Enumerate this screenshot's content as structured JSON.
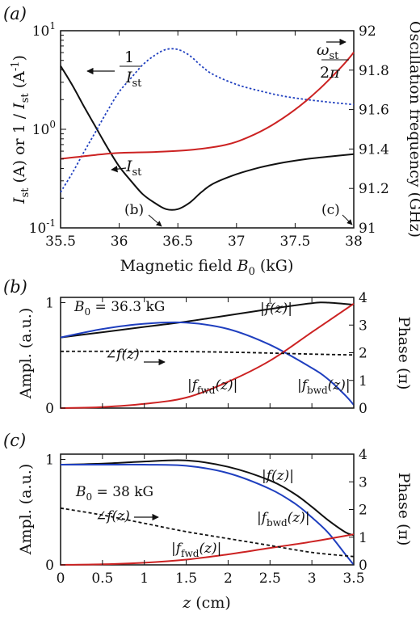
{
  "figure": {
    "panel_a_tag": "(a)",
    "panel_b_tag": "(b)",
    "panel_c_tag": "(c)"
  },
  "colors": {
    "black": "#111111",
    "blue": "#1f3fbf",
    "red": "#cc2222"
  },
  "chart_data": [
    {
      "type": "line",
      "panel": "a",
      "xlabel": "Magnetic field B0 (kG)",
      "ylabel_left": "Ist (A) or 1 / Ist (A-1)",
      "ylabel_right": "Oscillation frequency (GHz)",
      "xlim": [
        35.5,
        38
      ],
      "x_ticks": [
        "35.5",
        "36",
        "36.5",
        "37",
        "37.5",
        "38"
      ],
      "y_left_scale": "log",
      "ylim_left": [
        0.1,
        10
      ],
      "y_left_ticks": [
        "10^-1",
        "10^0",
        "10^1"
      ],
      "ylim_right": [
        91,
        92
      ],
      "y_right_ticks": [
        "91",
        "91.2",
        "91.4",
        "91.6",
        "91.8",
        "92"
      ],
      "annotations": [
        "(b)",
        "(c)"
      ],
      "series": [
        {
          "name": "Ist",
          "axis": "left",
          "style": "solid",
          "color": "black",
          "x": [
            35.5,
            35.6,
            35.7,
            35.8,
            35.9,
            36.0,
            36.1,
            36.2,
            36.3,
            36.4,
            36.5,
            36.6,
            36.7,
            36.8,
            37.0,
            37.2,
            37.4,
            37.6,
            37.8,
            38.0
          ],
          "y": [
            4.4,
            2.8,
            1.7,
            1.05,
            0.65,
            0.42,
            0.3,
            0.22,
            0.18,
            0.155,
            0.155,
            0.18,
            0.23,
            0.28,
            0.35,
            0.41,
            0.46,
            0.5,
            0.53,
            0.56
          ]
        },
        {
          "name": "1/Ist",
          "axis": "left",
          "style": "dotted",
          "color": "blue",
          "x": [
            35.5,
            35.6,
            35.7,
            35.8,
            35.9,
            36.0,
            36.1,
            36.2,
            36.3,
            36.4,
            36.5,
            36.6,
            36.7,
            36.8,
            37.0,
            37.2,
            37.4,
            37.6,
            37.8,
            38.0
          ],
          "y": [
            0.23,
            0.36,
            0.59,
            0.95,
            1.54,
            2.4,
            3.3,
            4.5,
            5.6,
            6.45,
            6.45,
            5.6,
            4.4,
            3.6,
            2.85,
            2.45,
            2.17,
            2.0,
            1.88,
            1.78
          ]
        },
        {
          "name": "ωst/2π",
          "axis": "right",
          "style": "solid",
          "color": "red",
          "x": [
            35.5,
            35.8,
            36.0,
            36.3,
            36.6,
            36.9,
            37.1,
            37.3,
            37.5,
            37.7,
            37.9,
            38.0
          ],
          "y": [
            91.35,
            91.37,
            91.38,
            91.385,
            91.395,
            91.42,
            91.46,
            91.52,
            91.6,
            91.7,
            91.82,
            91.89
          ]
        }
      ]
    },
    {
      "type": "line",
      "panel": "b",
      "annotation_field": "B0 = 36.3 kG",
      "ylabel_left": "Ampl. (a.u.)",
      "ylabel_right": "Phase (π)",
      "xlim": [
        0,
        3.5
      ],
      "ylim_left": [
        0,
        1.05
      ],
      "y_left_ticks": [
        "0",
        "1"
      ],
      "ylim_right": [
        0,
        4
      ],
      "y_right_ticks": [
        "0",
        "1",
        "2",
        "3",
        "4"
      ],
      "series": [
        {
          "name": "|f(z)|",
          "axis": "left",
          "style": "solid",
          "color": "black",
          "x": [
            0,
            0.5,
            1.0,
            1.5,
            2.0,
            2.5,
            3.0,
            3.2,
            3.5
          ],
          "y": [
            0.67,
            0.72,
            0.77,
            0.82,
            0.88,
            0.94,
            0.995,
            1.0,
            0.98
          ]
        },
        {
          "name": "|fbwd(z)|",
          "axis": "left",
          "style": "solid",
          "color": "blue",
          "x": [
            0,
            0.5,
            1.0,
            1.5,
            2.0,
            2.5,
            3.0,
            3.2,
            3.4,
            3.5
          ],
          "y": [
            0.67,
            0.75,
            0.8,
            0.81,
            0.75,
            0.6,
            0.38,
            0.27,
            0.12,
            0.03
          ]
        },
        {
          "name": "|ffwd(z)|",
          "axis": "left",
          "style": "solid",
          "color": "red",
          "x": [
            0,
            0.5,
            1.0,
            1.5,
            2.0,
            2.5,
            3.0,
            3.5
          ],
          "y": [
            0.0,
            0.01,
            0.04,
            0.1,
            0.25,
            0.45,
            0.72,
            0.99
          ]
        },
        {
          "name": "∠f(z)",
          "axis": "right",
          "style": "dotted",
          "color": "black",
          "x": [
            0,
            1.0,
            2.0,
            3.0,
            3.5
          ],
          "y": [
            2.05,
            2.05,
            2.02,
            1.95,
            1.92
          ]
        }
      ]
    },
    {
      "type": "line",
      "panel": "c",
      "annotation_field": "B0 = 38 kG",
      "xlabel": "z (cm)",
      "ylabel_left": "Ampl. (a.u.)",
      "ylabel_right": "Phase (π)",
      "xlim": [
        0,
        3.5
      ],
      "x_ticks": [
        "0",
        "0.5",
        "1",
        "1.5",
        "2",
        "2.5",
        "3",
        "3.5"
      ],
      "ylim_left": [
        0,
        1.05
      ],
      "y_left_ticks": [
        "0",
        "1"
      ],
      "ylim_right": [
        0,
        4
      ],
      "y_right_ticks": [
        "0",
        "1",
        "2",
        "3",
        "4"
      ],
      "series": [
        {
          "name": "|f(z)|",
          "axis": "left",
          "style": "solid",
          "color": "black",
          "x": [
            0,
            0.5,
            1.0,
            1.5,
            2.0,
            2.5,
            2.8,
            3.0,
            3.2,
            3.4,
            3.5
          ],
          "y": [
            0.95,
            0.96,
            0.98,
            0.99,
            0.93,
            0.8,
            0.67,
            0.55,
            0.42,
            0.31,
            0.28
          ]
        },
        {
          "name": "|fbwd(z)|",
          "axis": "left",
          "style": "solid",
          "color": "blue",
          "x": [
            0,
            0.5,
            1.0,
            1.5,
            2.0,
            2.5,
            2.8,
            3.0,
            3.2,
            3.4,
            3.5
          ],
          "y": [
            0.95,
            0.95,
            0.95,
            0.94,
            0.87,
            0.72,
            0.58,
            0.45,
            0.3,
            0.1,
            0.0
          ]
        },
        {
          "name": "|ffwd(z)|",
          "axis": "left",
          "style": "solid",
          "color": "red",
          "x": [
            0,
            0.5,
            1.0,
            1.5,
            2.0,
            2.5,
            3.0,
            3.5
          ],
          "y": [
            0.0,
            0.005,
            0.02,
            0.05,
            0.1,
            0.16,
            0.22,
            0.29
          ]
        },
        {
          "name": "∠f(z)",
          "axis": "right",
          "style": "dotted",
          "color": "black",
          "x": [
            0,
            0.5,
            1.0,
            1.5,
            2.0,
            2.5,
            3.0,
            3.5
          ],
          "y": [
            2.05,
            1.8,
            1.5,
            1.2,
            0.95,
            0.7,
            0.45,
            0.3
          ]
        }
      ]
    }
  ]
}
